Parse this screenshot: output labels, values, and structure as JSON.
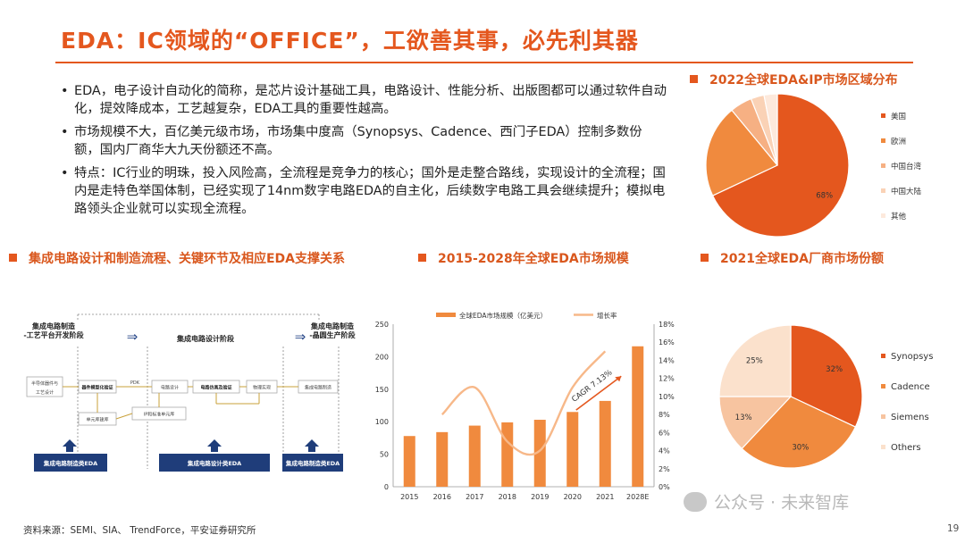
{
  "title": "EDA：IC领域的“OFFICE”，工欲善其事，必先利其器",
  "bullets": [
    "EDA，电子设计自动化的简称，是芯片设计基础工具，电路设计、性能分析、出版图都可以通过软件自动化，提效降成本，工艺越复杂，EDA工具的重要性越高。",
    "市场规模不大，百亿美元级市场，市场集中度高（Synopsys、Cadence、西门子EDA）控制多数份额，国内厂商华大九天份额还不高。",
    "特点：IC行业的明珠，投入风险高，全流程是竞争力的核心；国外是走整合路线，实现设计的全流程；国内是走特色举国体制，已经实现了14nm数字电路EDA的自主化，后续数字电路工具会继续提升；模拟电路领头企业就可以实现全流程。"
  ],
  "sections": {
    "region_pie": "2022全球EDA&IP市场区域分布",
    "flow": "集成电路设计和制造流程、关键环节及相应EDA支撑关系",
    "market": "2015-2028年全球EDA市场规模",
    "vendor_pie": "2021全球EDA厂商市场份额"
  },
  "flow": {
    "stage_left": "集成电路制造\n-工艺平台开发阶段",
    "stage_mid": "集成电路设计阶段",
    "stage_right": "集成电路制造\n-晶圆生产阶段",
    "box_process": "半导体器件与\n工艺设计",
    "box_device": "器件模型化验证",
    "box_cell": "单元库建库",
    "label_pdk": "PDK",
    "box_circuit": "电路设计",
    "box_sim": "电路仿真及验证",
    "box_physical": "物理实现",
    "box_ipcell": "IP和标准单元库",
    "box_fab": "集成电路制造",
    "tool_left": "集成电路制造类EDA",
    "tool_mid": "集成电路设计类EDA",
    "tool_right": "集成电路制造类EDA"
  },
  "footer": {
    "source": "资料来源：SEMI、SIA、 TrendForce，平安证券研究所",
    "page": "19",
    "watermark": "公众号 · 未来智库"
  },
  "colors": {
    "accent": "#e4571e",
    "orange2": "#f08a3e",
    "peach": "#f7c4a0",
    "light": "#fbe1cc",
    "navy": "#1f3d7a"
  },
  "chart_data": [
    {
      "type": "pie",
      "title": "2022全球EDA&IP市场区域分布",
      "labels": [
        "美国",
        "欧洲",
        "中国台湾",
        "中国大陆",
        "其他"
      ],
      "values": [
        68,
        21,
        5,
        3,
        3
      ],
      "data_labels": [
        "68%",
        "",
        "",
        "",
        ""
      ],
      "legend": "right"
    },
    {
      "type": "bar",
      "title": "2015-2028年全球EDA市场规模",
      "categories": [
        "2015",
        "2016",
        "2017",
        "2018",
        "2019",
        "2020",
        "2021",
        "2028E"
      ],
      "series": [
        {
          "name": "全球EDA市场规模（亿美元）",
          "values": [
            78,
            84,
            94,
            99,
            103,
            115,
            132,
            216
          ]
        },
        {
          "name": "增长率",
          "values": [
            null,
            8,
            11,
            5,
            4,
            11,
            15,
            null
          ]
        }
      ],
      "annotation": "CAGR 7.13%",
      "y_left_ticks": [
        "0",
        "50",
        "100",
        "150",
        "200",
        "250"
      ],
      "y_right_ticks": [
        "0%",
        "2%",
        "4%",
        "6%",
        "8%",
        "10%",
        "12%",
        "14%",
        "16%",
        "18%"
      ],
      "ylim": [
        0,
        250
      ],
      "y2lim": [
        0,
        18
      ],
      "legend": "top"
    },
    {
      "type": "pie",
      "title": "2021全球EDA厂商市场份额",
      "labels": [
        "Synopsys",
        "Cadence",
        "Siemens",
        "Others"
      ],
      "values": [
        32,
        30,
        13,
        25
      ],
      "data_labels": [
        "32%",
        "30%",
        "13%",
        "25%"
      ],
      "legend": "right"
    }
  ]
}
